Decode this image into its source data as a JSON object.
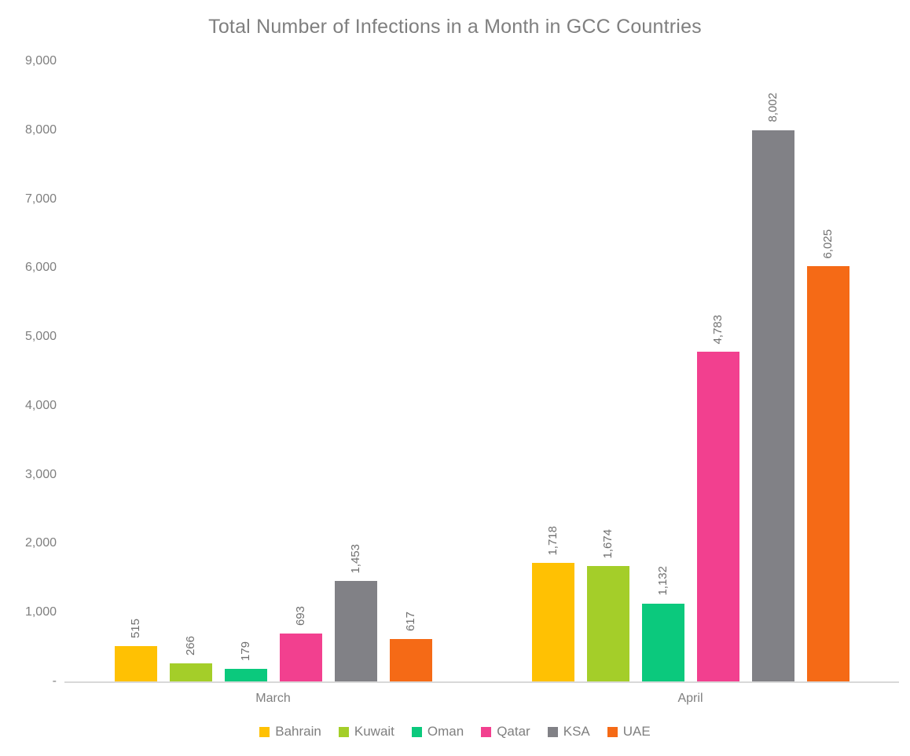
{
  "chart_data": {
    "type": "bar",
    "title": "Total Number of Infections in a Month in GCC Countries",
    "categories": [
      "March",
      "April"
    ],
    "series": [
      {
        "name": "Bahrain",
        "color": "#FFC103",
        "values": [
          515,
          1718
        ]
      },
      {
        "name": "Kuwait",
        "color": "#A4CE29",
        "values": [
          266,
          1674
        ]
      },
      {
        "name": "Oman",
        "color": "#0BC97D",
        "values": [
          179,
          1132
        ]
      },
      {
        "name": "Qatar",
        "color": "#F2408F",
        "values": [
          693,
          4783
        ]
      },
      {
        "name": "KSA",
        "color": "#818186",
        "values": [
          1453,
          8002
        ]
      },
      {
        "name": "UAE",
        "color": "#F56A16",
        "values": [
          617,
          6025
        ]
      }
    ],
    "y_axis": {
      "min": 0,
      "max": 9000,
      "step": 1000,
      "tick_labels": [
        "9,000",
        "8,000",
        "7,000",
        "6,000",
        "5,000",
        "4,000",
        "3,000",
        "2,000",
        "1,000",
        "-"
      ]
    },
    "data_labels": {
      "march": [
        "515",
        "266",
        "179",
        "693",
        "1,453",
        "617"
      ],
      "april": [
        "1,718",
        "1,674",
        "1,132",
        "4,783",
        "8,002",
        "6,025"
      ]
    },
    "legend_position": "bottom",
    "gridlines": false,
    "data_label_rotation": "vertical",
    "colors": {
      "title_text": "#7F7F7F",
      "axis_text": "#7F7F7F",
      "data_label_text": "#707070",
      "axis_line": "#D9D9D9",
      "background": "#FFFFFF"
    }
  }
}
